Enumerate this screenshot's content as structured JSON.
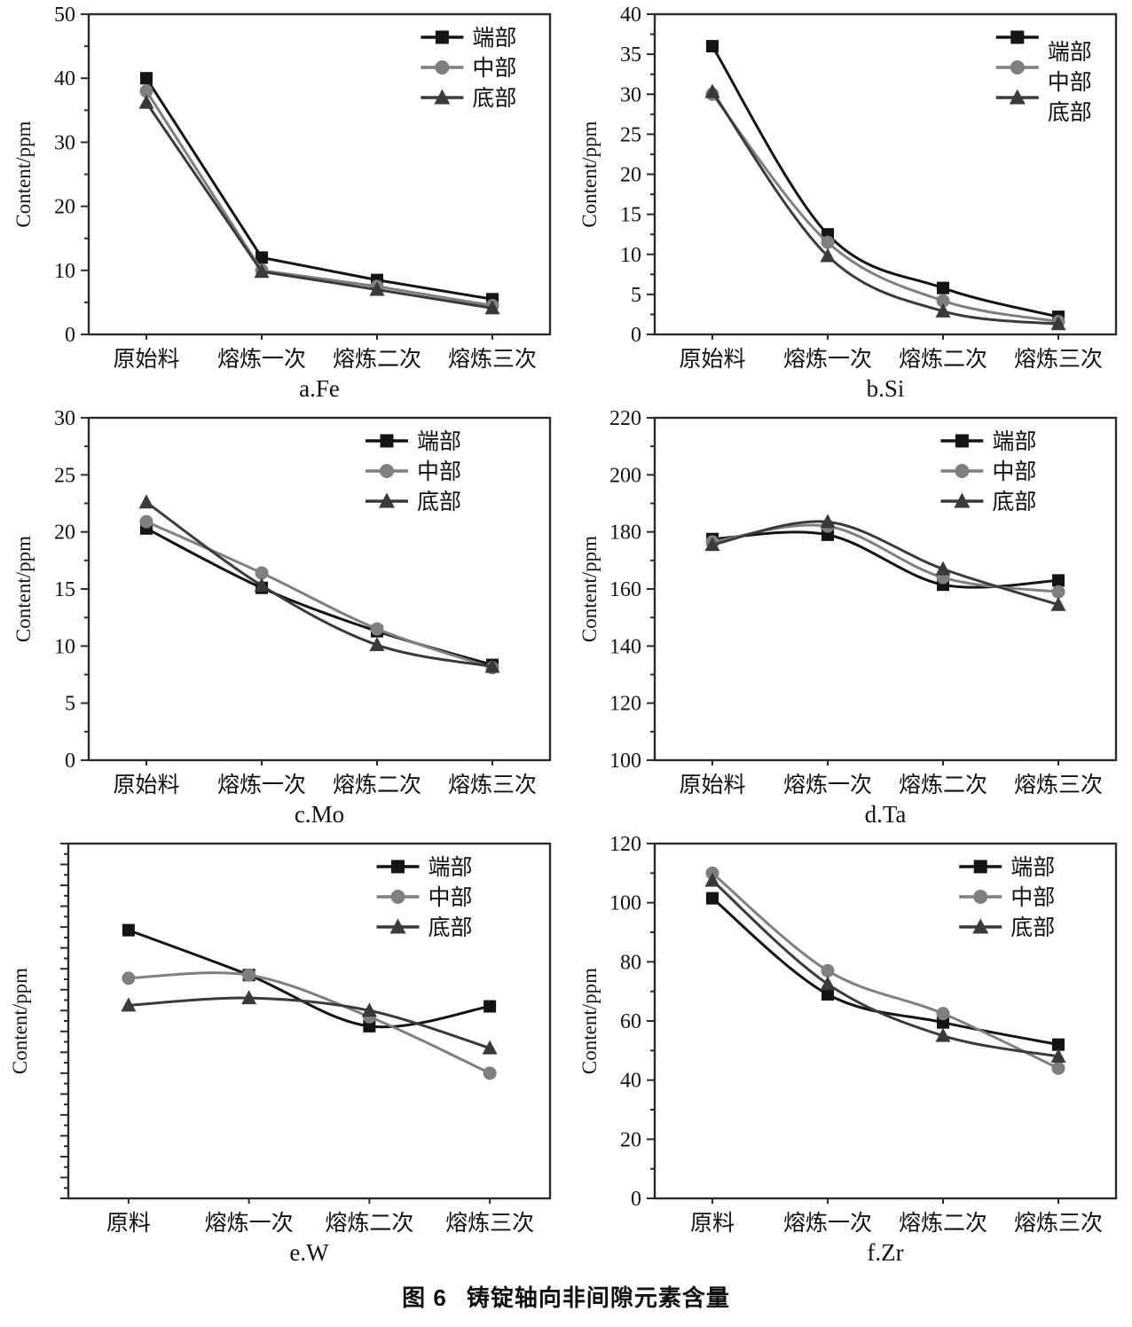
{
  "figure": {
    "caption_prefix": "图 6",
    "caption_title": "铸锭轴向非间隙元素含量"
  },
  "chart_data": [
    {
      "type": "line",
      "title": "a.Fe",
      "ylabel": "Content/ppm",
      "xlabel": "",
      "categories": [
        "原始料",
        "熔炼一次",
        "熔炼二次",
        "熔炼三次"
      ],
      "ylim": [
        0,
        50
      ],
      "ytick_step": 10,
      "minor_step": 5,
      "ytick_labels_visible": true,
      "grid": false,
      "smooth": false,
      "legend_position": "top-right-inside",
      "legend_x": 0.72,
      "legend_label_dy": 0,
      "series": [
        {
          "name": "端部",
          "marker": "square",
          "color": "#141414",
          "values": [
            40,
            12,
            8.5,
            5.5
          ]
        },
        {
          "name": "中部",
          "marker": "circle",
          "color": "#7f7f7f",
          "values": [
            38,
            10,
            7.5,
            4.5
          ]
        },
        {
          "name": "底部",
          "marker": "triangle",
          "color": "#3a3a3a",
          "values": [
            36.2,
            9.8,
            7,
            4.1
          ]
        }
      ]
    },
    {
      "type": "line",
      "title": "b.Si",
      "ylabel": "Content/ppm",
      "xlabel": "",
      "categories": [
        "原始料",
        "熔炼一次",
        "熔炼二次",
        "熔炼三次"
      ],
      "ylim": [
        0,
        40
      ],
      "ytick_step": 5,
      "minor_step": 2.5,
      "ytick_labels_visible": true,
      "grid": false,
      "smooth": true,
      "legend_position": "top-right-inside",
      "legend_x": 0.74,
      "legend_label_dy": 16,
      "series": [
        {
          "name": "端部",
          "marker": "square",
          "color": "#141414",
          "values": [
            36,
            12.5,
            5.8,
            2.2
          ]
        },
        {
          "name": "中部",
          "marker": "circle",
          "color": "#7f7f7f",
          "values": [
            30,
            11.5,
            4.2,
            1.6
          ]
        },
        {
          "name": "底部",
          "marker": "triangle",
          "color": "#3a3a3a",
          "values": [
            30.3,
            9.8,
            2.9,
            1.3
          ]
        }
      ]
    },
    {
      "type": "line",
      "title": "c.Mo",
      "ylabel": "Content/ppm",
      "xlabel": "",
      "categories": [
        "原始料",
        "熔炼一次",
        "熔炼二次",
        "熔炼三次"
      ],
      "ylim": [
        0,
        30
      ],
      "ytick_step": 5,
      "minor_step": 2.5,
      "ytick_labels_visible": true,
      "grid": false,
      "smooth": true,
      "legend_position": "top-right-inside",
      "legend_x": 0.6,
      "legend_label_dy": 0,
      "series": [
        {
          "name": "端部",
          "marker": "square",
          "color": "#141414",
          "values": [
            20.3,
            15.1,
            11.3,
            8.35
          ]
        },
        {
          "name": "中部",
          "marker": "circle",
          "color": "#7f7f7f",
          "values": [
            20.9,
            16.4,
            11.5,
            8.1
          ]
        },
        {
          "name": "底部",
          "marker": "triangle",
          "color": "#3a3a3a",
          "values": [
            22.6,
            15.3,
            10.1,
            8.2
          ]
        }
      ]
    },
    {
      "type": "line",
      "title": "d.Ta",
      "ylabel": "Content/ppm",
      "xlabel": "",
      "categories": [
        "原始料",
        "熔炼一次",
        "熔炼二次",
        "熔炼三次"
      ],
      "ylim": [
        100,
        220
      ],
      "ytick_step": 20,
      "minor_step": 10,
      "ytick_labels_visible": true,
      "grid": false,
      "smooth": true,
      "legend_position": "top-right-inside",
      "legend_x": 0.62,
      "legend_label_dy": 0,
      "series": [
        {
          "name": "端部",
          "marker": "square",
          "color": "#141414",
          "values": [
            177.5,
            179,
            161.5,
            163
          ]
        },
        {
          "name": "中部",
          "marker": "circle",
          "color": "#7f7f7f",
          "values": [
            176.5,
            182,
            164,
            159
          ]
        },
        {
          "name": "底部",
          "marker": "triangle",
          "color": "#3a3a3a",
          "values": [
            175.5,
            183.5,
            167,
            154.5
          ]
        }
      ]
    },
    {
      "type": "line",
      "title": "e.W",
      "ylabel": "Content/ppm",
      "xlabel": "",
      "categories": [
        "原料",
        "熔炼一次",
        "熔炼二次",
        "熔炼三次"
      ],
      "ylim": [
        0,
        34
      ],
      "ytick_step": 2,
      "minor_step": 1,
      "ytick_labels_visible": false,
      "y_axis_unlabeled": true,
      "grid": false,
      "smooth": true,
      "legend_position": "top-right-inside",
      "legend_x": 0.64,
      "legend_label_dy": 0,
      "series": [
        {
          "name": "端部",
          "marker": "square",
          "color": "#141414",
          "values": [
            25.7,
            21.4,
            16.5,
            18.4
          ]
        },
        {
          "name": "中部",
          "marker": "circle",
          "color": "#7f7f7f",
          "values": [
            21.1,
            21.4,
            17.4,
            12.0
          ]
        },
        {
          "name": "底部",
          "marker": "triangle",
          "color": "#3a3a3a",
          "values": [
            18.5,
            19.2,
            18.0,
            14.4
          ]
        }
      ]
    },
    {
      "type": "line",
      "title": "f.Zr",
      "ylabel": "Content/ppm",
      "xlabel": "",
      "categories": [
        "原料",
        "熔炼一次",
        "熔炼二次",
        "熔炼三次"
      ],
      "ylim": [
        0,
        120
      ],
      "ytick_step": 20,
      "minor_step": 10,
      "ytick_labels_visible": true,
      "grid": false,
      "smooth": true,
      "legend_position": "top-right-inside",
      "legend_x": 0.66,
      "legend_label_dy": 0,
      "series": [
        {
          "name": "端部",
          "marker": "square",
          "color": "#141414",
          "values": [
            101.5,
            69,
            59.5,
            52
          ]
        },
        {
          "name": "中部",
          "marker": "circle",
          "color": "#7f7f7f",
          "values": [
            110,
            77,
            62.5,
            44
          ]
        },
        {
          "name": "底部",
          "marker": "triangle",
          "color": "#3a3a3a",
          "values": [
            107.5,
            72.5,
            55,
            48
          ]
        }
      ]
    }
  ]
}
